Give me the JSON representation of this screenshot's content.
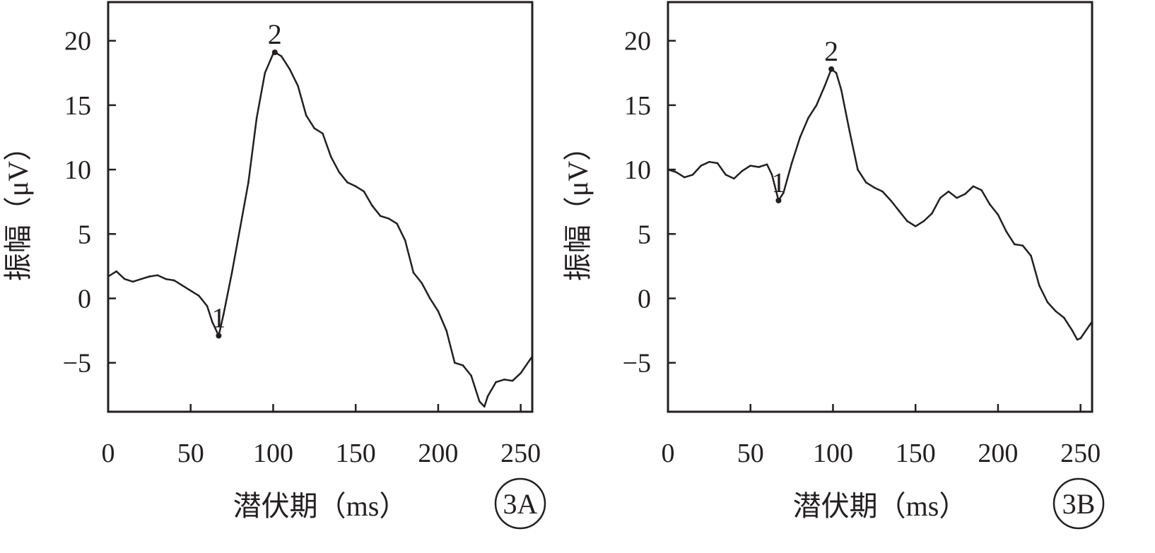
{
  "chart_data": [
    {
      "type": "line",
      "panel_label": "3A",
      "xlabel": "潜伏期（ms）",
      "ylabel": "振幅（μV）",
      "xlim": [
        0,
        257
      ],
      "ylim": [
        -8.8,
        23
      ],
      "xticks": [
        0,
        50,
        100,
        150,
        200,
        250
      ],
      "yticks": [
        -5,
        0,
        5,
        10,
        15,
        20
      ],
      "grid": false,
      "annotations": [
        {
          "text": "1",
          "x": 67,
          "y": -2.9
        },
        {
          "text": "2",
          "x": 101,
          "y": 19.1
        }
      ],
      "series": [
        {
          "x": [
            0,
            5,
            10,
            15,
            20,
            25,
            30,
            35,
            40,
            45,
            50,
            55,
            60,
            63,
            67,
            70,
            75,
            80,
            85,
            90,
            95,
            100,
            101,
            105,
            110,
            115,
            120,
            125,
            130,
            135,
            140,
            145,
            150,
            155,
            160,
            165,
            170,
            175,
            180,
            185,
            190,
            195,
            200,
            205,
            210,
            215,
            220,
            225,
            228,
            230,
            235,
            240,
            245,
            250,
            257
          ],
          "y": [
            1.7,
            2.1,
            1.5,
            1.3,
            1.5,
            1.7,
            1.8,
            1.5,
            1.4,
            1.0,
            0.6,
            0.2,
            -0.6,
            -1.8,
            -2.9,
            -1.2,
            2.0,
            5.5,
            9.0,
            14.0,
            17.5,
            19.0,
            19.1,
            18.8,
            17.8,
            16.5,
            14.2,
            13.2,
            12.8,
            11.0,
            9.8,
            9.0,
            8.7,
            8.3,
            7.2,
            6.4,
            6.2,
            5.8,
            4.5,
            2.0,
            1.2,
            0.0,
            -1.0,
            -2.5,
            -5.0,
            -5.2,
            -6.0,
            -8.0,
            -8.4,
            -7.6,
            -6.5,
            -6.3,
            -6.4,
            -5.8,
            -4.5
          ]
        }
      ]
    },
    {
      "type": "line",
      "panel_label": "3B",
      "xlabel": "潜伏期（ms）",
      "ylabel": "振幅（μV）",
      "xlim": [
        0,
        257
      ],
      "ylim": [
        -8.8,
        23
      ],
      "xticks": [
        0,
        50,
        100,
        150,
        200,
        250
      ],
      "yticks": [
        -5,
        0,
        5,
        10,
        15,
        20
      ],
      "grid": false,
      "annotations": [
        {
          "text": "1",
          "x": 67,
          "y": 7.6
        },
        {
          "text": "2",
          "x": 99,
          "y": 17.8
        }
      ],
      "series": [
        {
          "x": [
            0,
            5,
            10,
            15,
            20,
            25,
            30,
            35,
            40,
            45,
            50,
            55,
            60,
            63,
            67,
            70,
            75,
            80,
            85,
            90,
            95,
            99,
            102,
            105,
            110,
            115,
            120,
            125,
            130,
            135,
            140,
            145,
            150,
            155,
            160,
            165,
            170,
            175,
            180,
            185,
            190,
            195,
            200,
            205,
            210,
            215,
            220,
            225,
            230,
            235,
            240,
            245,
            248,
            250,
            257
          ],
          "y": [
            10.0,
            9.8,
            9.4,
            9.6,
            10.3,
            10.6,
            10.5,
            9.6,
            9.3,
            9.9,
            10.3,
            10.2,
            10.4,
            9.6,
            7.6,
            8.2,
            10.5,
            12.5,
            14.0,
            15.0,
            16.5,
            17.8,
            17.5,
            16.2,
            13.0,
            10.0,
            9.0,
            8.6,
            8.3,
            7.6,
            6.8,
            6.0,
            5.6,
            6.0,
            6.6,
            7.8,
            8.3,
            7.8,
            8.1,
            8.7,
            8.4,
            7.3,
            6.5,
            5.2,
            4.2,
            4.1,
            3.3,
            1.0,
            -0.3,
            -1.0,
            -1.5,
            -2.5,
            -3.2,
            -3.1,
            -1.8
          ]
        }
      ]
    }
  ]
}
